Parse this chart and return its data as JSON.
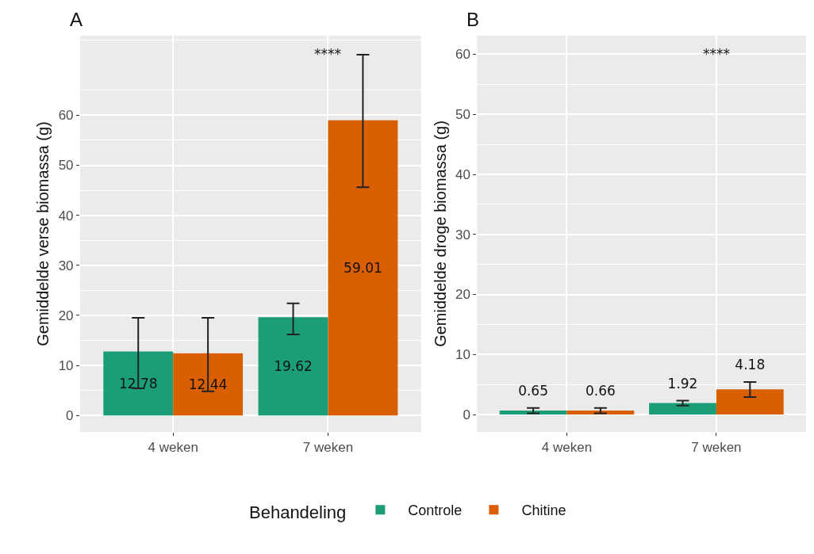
{
  "chart_data": [
    {
      "type": "bar",
      "title": "A",
      "ylabel": "Gemiddelde verse biomassa (g)",
      "categories": [
        "4 weken",
        "7 weken"
      ],
      "series": [
        {
          "name": "Controle",
          "color": "#1b9e77",
          "values": [
            12.78,
            19.62
          ],
          "errors": [
            [
              5.4,
              19.5
            ],
            [
              16.2,
              22.4
            ]
          ]
        },
        {
          "name": "Chitine",
          "color": "#d95f02",
          "values": [
            12.44,
            59.01
          ],
          "errors": [
            [
              4.8,
              19.5
            ],
            [
              45.6,
              72.1
            ]
          ]
        }
      ],
      "ylim": [
        -3.3,
        75.9
      ],
      "yticks": [
        0,
        10,
        20,
        30,
        40,
        50,
        60
      ],
      "grid": true,
      "data_labels": true,
      "legend": "bottom",
      "legend_title": "Behandeling",
      "annotations": [
        "****"
      ]
    },
    {
      "type": "bar",
      "title": "B",
      "ylabel": "Gemiddelde droge biomassa (g)",
      "categories": [
        "4 weken",
        "7 weken"
      ],
      "series": [
        {
          "color": "#1b9e77",
          "values": [
            0.65,
            1.92
          ],
          "errors": [
            [
              0.2,
              1.1
            ],
            [
              1.5,
              2.3
            ]
          ]
        },
        {
          "color": "#d95f02",
          "values": [
            0.66,
            4.18
          ],
          "errors": [
            [
              0.2,
              1.1
            ],
            [
              2.9,
              5.4
            ]
          ]
        }
      ],
      "ylim": [
        -2.9,
        63.1
      ],
      "yticks": [
        0,
        10,
        20,
        30,
        40,
        50,
        60
      ],
      "grid": true,
      "data_labels": true,
      "annotations": [
        "****"
      ]
    }
  ]
}
